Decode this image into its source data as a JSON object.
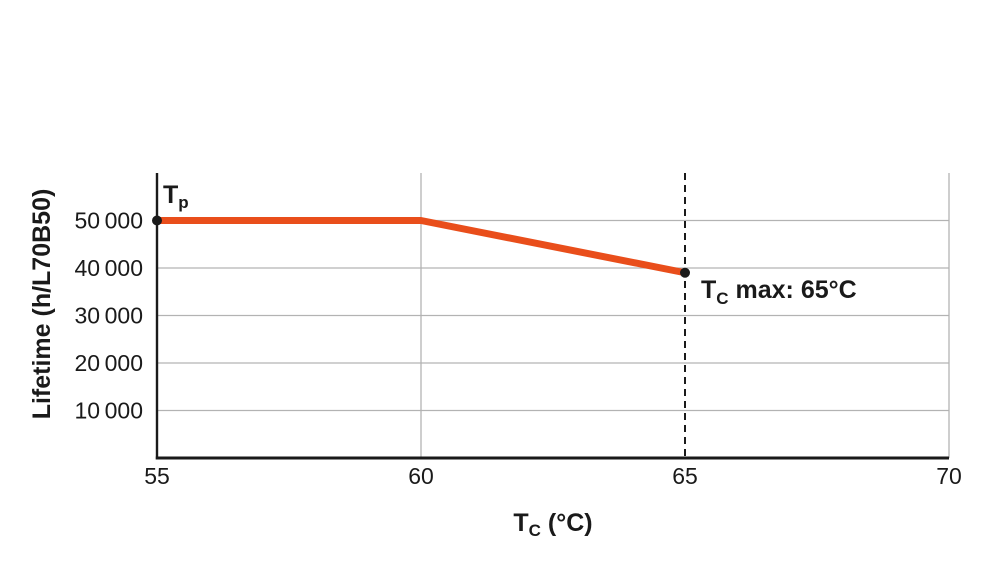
{
  "chart_data": {
    "type": "line",
    "title": "",
    "xlabel": "Tc (°C)",
    "ylabel": "Lifetime (h/L70B50)",
    "xlim": [
      55,
      70
    ],
    "ylim": [
      0,
      60000
    ],
    "x_ticks": [
      55,
      60,
      65,
      70
    ],
    "x_gridlines": [
      60,
      70
    ],
    "y_ticks": [
      10000,
      20000,
      30000,
      40000,
      50000
    ],
    "y_tick_labels": [
      "10 000",
      "20 000",
      "30 000",
      "40 000",
      "50 000"
    ],
    "grid": true,
    "legend": false,
    "series": [
      {
        "name": "lifetime-vs-tc",
        "x": [
          55,
          60,
          65
        ],
        "y": [
          50000,
          50000,
          39000
        ],
        "color": "#e94e1b"
      }
    ],
    "markers": [
      {
        "x": 55,
        "y": 50000
      },
      {
        "x": 65,
        "y": 39000
      }
    ],
    "reference_line": {
      "x": 65,
      "style": "dashed",
      "label": "Tc max: 65°C"
    },
    "annotations": [
      {
        "text": "Tp",
        "anchor": "start-point"
      },
      {
        "text": "Tc max: 65°C",
        "anchor": "end-point"
      }
    ]
  },
  "labels": {
    "tp_main": "T",
    "tp_sub": "p",
    "tcmax_main": "T",
    "tcmax_sub": "C",
    "tcmax_rest": " max: 65°C",
    "x_title_main": "T",
    "x_title_sub": "C",
    "x_title_rest": " (°C)",
    "y_title": "Lifetime (h/L70B50)"
  },
  "colors": {
    "background": "#ffffff",
    "line": "#e94e1b",
    "grid": "#b3b3b3",
    "axis": "#1a1a1a",
    "text": "#1a1a1a"
  }
}
